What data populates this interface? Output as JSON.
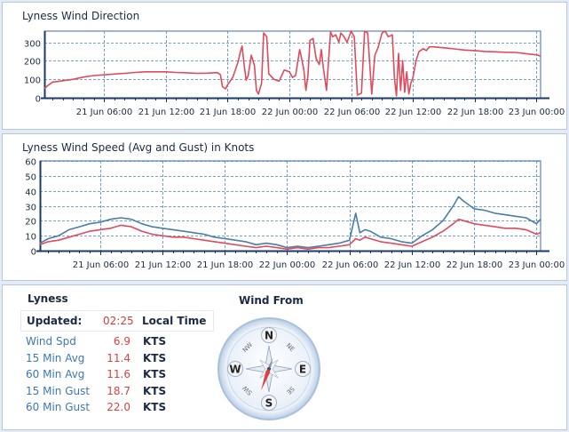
{
  "direction_chart": {
    "title": "Lyness Wind Direction",
    "chart_data": {
      "type": "line",
      "title": "Lyness Wind Direction",
      "ylim": [
        0,
        360
      ],
      "yticks": [
        0,
        100,
        200,
        300
      ],
      "x_tick_labels": [
        "21 Jun 06:00",
        "21 Jun 12:00",
        "21 Jun 18:00",
        "22 Jun 00:00",
        "22 Jun 06:00",
        "22 Jun 12:00",
        "22 Jun 18:00",
        "23 Jun 00:00"
      ],
      "x_tick_hours": [
        6,
        12,
        18,
        24,
        30,
        36,
        42,
        48
      ],
      "xlim_hours": [
        0.2,
        48.4
      ],
      "grid": true,
      "series": [
        {
          "color": "#e04a5a",
          "hours": [
            0.2,
            0.5,
            1,
            1.5,
            2,
            3,
            4,
            5,
            6,
            7,
            8,
            9,
            10,
            11,
            12,
            13,
            14,
            15,
            16,
            17,
            17.3,
            17.5,
            17.8,
            18,
            18.5,
            19,
            19.2,
            19.4,
            19.6,
            19.8,
            20,
            20.3,
            20.6,
            20.8,
            21,
            21.3,
            21.5,
            21.8,
            22,
            22.5,
            23,
            23.5,
            24,
            24.3,
            24.6,
            25,
            25.2,
            25.4,
            25.6,
            25.8,
            26,
            26.3,
            26.6,
            26.9,
            27.1,
            27.3,
            27.6,
            28,
            28.2,
            28.5,
            28.8,
            29,
            29.3,
            29.6,
            30,
            30.3,
            30.6,
            31,
            31.3,
            31.6,
            32,
            32.3,
            32.6,
            33,
            33.3,
            33.6,
            34,
            34.2,
            34.4,
            34.6,
            34.8,
            35,
            35.2,
            35.4,
            35.6,
            35.8,
            36,
            36.3,
            36.6,
            37,
            37.3,
            37.6,
            38,
            39,
            40,
            41,
            42,
            43,
            44,
            45,
            46,
            47,
            48,
            48.4
          ],
          "values": [
            50,
            65,
            85,
            88,
            92,
            100,
            112,
            120,
            124,
            128,
            132,
            137,
            140,
            140,
            140,
            137,
            135,
            132,
            133,
            136,
            125,
            60,
            48,
            70,
            110,
            190,
            240,
            280,
            180,
            95,
            120,
            230,
            175,
            40,
            20,
            80,
            350,
            330,
            130,
            100,
            90,
            150,
            140,
            110,
            120,
            260,
            210,
            150,
            40,
            120,
            310,
            320,
            210,
            180,
            260,
            160,
            40,
            355,
            330,
            340,
            300,
            350,
            330,
            300,
            360,
            330,
            15,
            25,
            360,
            350,
            20,
            230,
            270,
            350,
            360,
            330,
            340,
            110,
            10,
            240,
            40,
            200,
            30,
            140,
            20,
            80,
            110,
            200,
            250,
            265,
            255,
            275,
            275,
            270,
            264,
            258,
            255,
            250,
            248,
            246,
            245,
            238,
            232,
            225
          ]
        }
      ]
    }
  },
  "speed_chart": {
    "title": "Lyness Wind Speed (Avg and Gust) in Knots",
    "chart_data": {
      "type": "line",
      "title": "Lyness Wind Speed (Avg and Gust) in Knots",
      "ylim": [
        0,
        60
      ],
      "yticks": [
        0,
        10,
        20,
        30,
        40,
        50,
        60
      ],
      "x_tick_labels": [
        "21 Jun 06:00",
        "21 Jun 12:00",
        "21 Jun 18:00",
        "22 Jun 00:00",
        "22 Jun 06:00",
        "22 Jun 12:00",
        "22 Jun 18:00",
        "23 Jun 00:00"
      ],
      "x_tick_hours": [
        6,
        12,
        18,
        24,
        30,
        36,
        42,
        48
      ],
      "xlim_hours": [
        0.2,
        48.4
      ],
      "grid": true,
      "series": [
        {
          "color": "#4a7ca8",
          "hours": [
            0.2,
            1,
            2,
            3,
            4,
            5,
            6,
            7,
            8,
            9,
            10,
            11,
            12,
            13,
            14,
            15,
            16,
            17,
            18,
            19,
            20,
            21,
            22,
            23,
            24,
            25,
            26,
            27,
            28,
            29,
            30,
            30.6,
            31,
            31.5,
            32,
            33,
            34,
            35,
            36,
            37,
            38,
            39,
            40,
            40.5,
            41,
            42,
            43,
            44,
            45,
            46,
            47,
            48,
            48.4
          ],
          "values": [
            5,
            8,
            10,
            14,
            16,
            18,
            19,
            21,
            22,
            21,
            18,
            16,
            15,
            14,
            13,
            12,
            11,
            9,
            8,
            7,
            6,
            4,
            5,
            4,
            2,
            3,
            2,
            3,
            4,
            5,
            7,
            25,
            12,
            14,
            13,
            9,
            8,
            6,
            5,
            10,
            14,
            20,
            30,
            36,
            33,
            28,
            27,
            25,
            24,
            23,
            22,
            18,
            21
          ]
        },
        {
          "color": "#e04a5a",
          "hours": [
            0.2,
            1,
            2,
            3,
            4,
            5,
            6,
            7,
            8,
            9,
            10,
            11,
            12,
            13,
            14,
            15,
            16,
            17,
            18,
            19,
            20,
            21,
            22,
            23,
            24,
            25,
            26,
            27,
            28,
            29,
            30,
            30.6,
            31,
            31.5,
            32,
            33,
            34,
            35,
            36,
            37,
            38,
            39,
            40,
            40.5,
            41,
            42,
            43,
            44,
            45,
            46,
            47,
            48,
            48.4
          ],
          "values": [
            4,
            6,
            7,
            9,
            11,
            13,
            14,
            15,
            17,
            16,
            13,
            11,
            10,
            9,
            9,
            8,
            7,
            6,
            5,
            4,
            3,
            2,
            3,
            2,
            1,
            2,
            1,
            2,
            2,
            3,
            4,
            8,
            7,
            9,
            8,
            6,
            5,
            4,
            3,
            6,
            9,
            13,
            18,
            21,
            20,
            18,
            17,
            16,
            15,
            15,
            14,
            11,
            12
          ]
        }
      ]
    }
  },
  "summary": {
    "station": "Lyness",
    "updated_label": "Updated:",
    "updated_time": "02:25",
    "timezone": "Local Time",
    "stats": [
      {
        "label": "Wind Spd",
        "value": "6.9",
        "unit": "KTS"
      },
      {
        "label": "15 Min Avg",
        "value": "11.4",
        "unit": "KTS"
      },
      {
        "label": "60 Min Avg",
        "value": "11.6",
        "unit": "KTS"
      },
      {
        "label": "15 Min Gust",
        "value": "18.7",
        "unit": "KTS"
      },
      {
        "label": "60 Min Gust",
        "value": "22.0",
        "unit": "KTS"
      }
    ]
  },
  "compass": {
    "title": "Wind From",
    "labels": {
      "n": "N",
      "e": "E",
      "s": "S",
      "w": "W",
      "ne": "NE",
      "nw": "NW",
      "se": "SE",
      "sw": "SW"
    },
    "needle_bearing_deg": 200,
    "needle_color": "#e04040"
  }
}
